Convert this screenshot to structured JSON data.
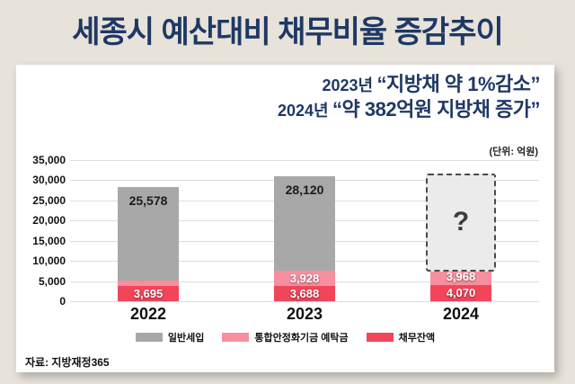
{
  "page": {
    "title": "세종시 예산대비 채무비율 증감추이",
    "source": "자료: 지방재정365"
  },
  "subtitle": {
    "lines": [
      {
        "prefix": "2023년",
        "quote": "“지방채 약 1%감소”"
      },
      {
        "prefix": "2024년",
        "quote": "“약 382억원 지방채 증가”"
      }
    ]
  },
  "chart_data": {
    "type": "bar",
    "stacked": true,
    "title": "세종시 예산대비 채무비율 증감추이",
    "unit_label": "(단위: 억원)",
    "categories": [
      "2022",
      "2023",
      "2024"
    ],
    "series": [
      {
        "name": "일반세입",
        "color": "#a8a8a8",
        "values": [
          25578,
          28120,
          null
        ]
      },
      {
        "name": "통합안정화기금 예탁금",
        "color": "#f78f9e",
        "values": [
          1400,
          3928,
          3968
        ]
      },
      {
        "name": "채무잔액",
        "color": "#f2455a",
        "values": [
          3695,
          3688,
          4070
        ]
      }
    ],
    "ylim": [
      0,
      35000
    ],
    "y_tick_interval": 5000,
    "y_ticks": [
      "35,000",
      "30,000",
      "25,000",
      "20,000",
      "15,000",
      "10,000",
      "5,000",
      "0"
    ],
    "grid": true,
    "legend_position": "bottom",
    "unknown_marker": {
      "category": "2024",
      "label": "?"
    },
    "display_hints": {
      "bar_top_display": [
        28300,
        31000,
        null
      ],
      "unknown_box_display_range": [
        7400,
        31700
      ]
    }
  },
  "colors": {
    "background": "#e7e2da",
    "accent_navy": "#1f3864",
    "card": "#ffffff",
    "gridline": "#dedede"
  }
}
